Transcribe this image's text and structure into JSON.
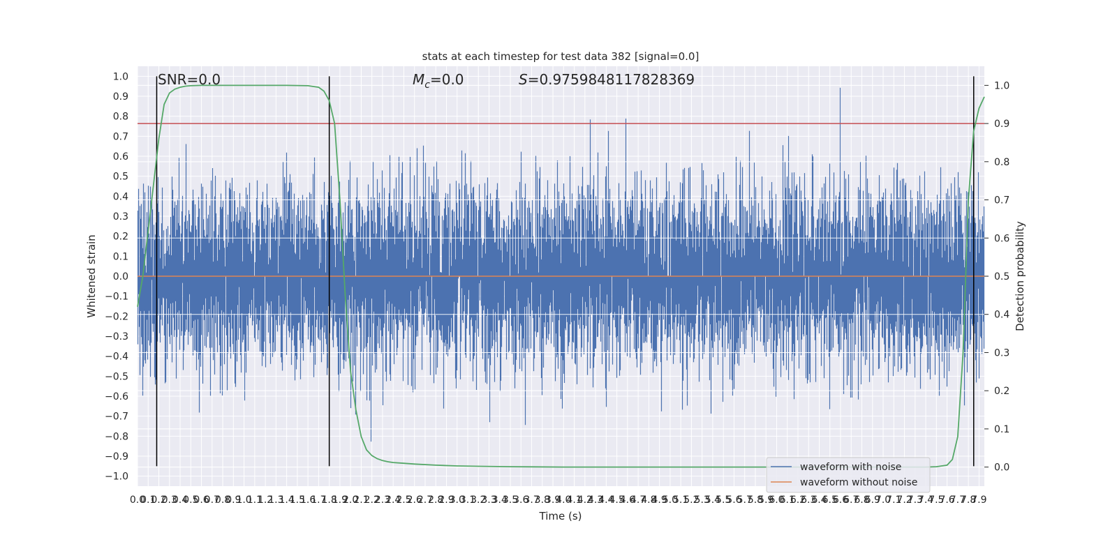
{
  "chart_data": {
    "type": "line",
    "title": "stats at each timestep for test data 382 [signal=0.0]",
    "xlabel": "Time (s)",
    "ylabel_left": "Whitened strain",
    "ylabel_right": "Detection probability",
    "xlim": [
      0.0,
      7.95
    ],
    "ylim_left": [
      -1.05,
      1.05
    ],
    "ylim_right": [
      -0.05,
      1.05
    ],
    "x_ticks": [
      "0.0",
      "0.1",
      "0.2",
      "0.3",
      "0.4",
      "0.5",
      "0.6",
      "0.7",
      "0.8",
      "0.9",
      "1.0",
      "1.1",
      "1.2",
      "1.3",
      "1.4",
      "1.5",
      "1.6",
      "1.7",
      "1.8",
      "1.9",
      "2.0",
      "2.1",
      "2.2",
      "2.3",
      "2.4",
      "2.5",
      "2.6",
      "2.7",
      "2.8",
      "2.9",
      "3.0",
      "3.1",
      "3.2",
      "3.3",
      "3.4",
      "3.5",
      "3.6",
      "3.7",
      "3.8",
      "3.9",
      "4.0",
      "4.1",
      "4.2",
      "4.3",
      "4.4",
      "4.5",
      "4.6",
      "4.7",
      "4.8",
      "4.9",
      "5.0",
      "5.1",
      "5.2",
      "5.3",
      "5.4",
      "5.5",
      "5.6",
      "5.7",
      "5.8",
      "5.9",
      "6.0",
      "6.1",
      "6.2",
      "6.3",
      "6.4",
      "6.5",
      "6.6",
      "6.7",
      "6.8",
      "6.9",
      "7.0",
      "7.1",
      "7.2",
      "7.3",
      "7.4",
      "7.5",
      "7.6",
      "7.7",
      "7.8",
      "7.9"
    ],
    "y_ticks_left": [
      "1.0",
      "0.9",
      "0.8",
      "0.7",
      "0.6",
      "0.5",
      "0.4",
      "0.3",
      "0.2",
      "0.1",
      "0.0",
      "−0.1",
      "−0.2",
      "−0.3",
      "−0.4",
      "−0.5",
      "−0.6",
      "−0.7",
      "−0.8",
      "−0.9",
      "−1.0"
    ],
    "y_ticks_right": [
      "1.0",
      "0.9",
      "0.8",
      "0.7",
      "0.6",
      "0.5",
      "0.4",
      "0.3",
      "0.2",
      "0.1",
      "0.0"
    ],
    "annotations": {
      "snr": "SNR=0.0",
      "mc_base": "M",
      "mc_sub": "c",
      "mc_value": "=0.0",
      "s_base": "S",
      "s_value": "=0.9759848117828369"
    },
    "threshold_prob": 0.9,
    "vertical_lines_time": [
      0.18,
      1.8,
      7.85
    ],
    "grid": true,
    "legend_position": "lower-right",
    "series": [
      {
        "name": "waveform with noise",
        "color": "#4c72b0",
        "envelope": {
          "typical_pos": 0.5,
          "typical_neg": -0.5,
          "peak": 1.0,
          "trough": -0.93,
          "samples": 8000
        }
      },
      {
        "name": "waveform without noise",
        "color": "#dd8452",
        "values_constant": 0.0
      },
      {
        "name": "detection probability",
        "color": "#55a868",
        "x": [
          0.0,
          0.05,
          0.1,
          0.15,
          0.2,
          0.25,
          0.3,
          0.35,
          0.4,
          0.45,
          0.5,
          0.6,
          0.7,
          0.8,
          1.0,
          1.2,
          1.4,
          1.6,
          1.7,
          1.75,
          1.8,
          1.85,
          1.9,
          1.95,
          2.0,
          2.05,
          2.1,
          2.15,
          2.2,
          2.25,
          2.3,
          2.35,
          2.4,
          2.5,
          2.6,
          2.8,
          3.0,
          3.2,
          3.5,
          4.0,
          5.0,
          6.0,
          7.0,
          7.2,
          7.4,
          7.5,
          7.6,
          7.65,
          7.7,
          7.75,
          7.8,
          7.85,
          7.9,
          7.95
        ],
        "y": [
          0.42,
          0.5,
          0.62,
          0.74,
          0.86,
          0.95,
          0.98,
          0.99,
          0.995,
          0.998,
          0.999,
          1.0,
          1.0,
          1.0,
          1.0,
          1.0,
          1.0,
          0.999,
          0.995,
          0.985,
          0.96,
          0.9,
          0.7,
          0.45,
          0.25,
          0.15,
          0.08,
          0.045,
          0.03,
          0.022,
          0.017,
          0.014,
          0.012,
          0.01,
          0.008,
          0.005,
          0.003,
          0.002,
          0.001,
          0.0,
          0.0,
          0.0,
          0.0,
          0.0,
          0.0,
          0.001,
          0.005,
          0.02,
          0.08,
          0.3,
          0.7,
          0.88,
          0.94,
          0.97
        ]
      }
    ],
    "colors": {
      "background": "#eaeaf2",
      "grid": "#ffffff",
      "noise": "#4c72b0",
      "clean": "#dd8452",
      "probability": "#55a868",
      "threshold": "#c44e52",
      "vline": "#000000"
    }
  }
}
